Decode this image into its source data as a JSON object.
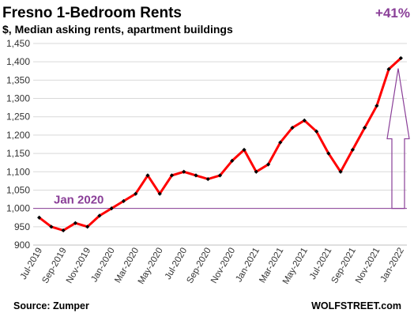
{
  "chart_data": {
    "type": "line",
    "title": "Fresno 1-Bedroom Rents",
    "subtitle": "$, Median asking rents, apartment buildings",
    "categories": [
      "Jul-2019",
      "Aug-2019",
      "Sep-2019",
      "Oct-2019",
      "Nov-2019",
      "Dec-2019",
      "Jan-2020",
      "Feb-2020",
      "Mar-2020",
      "Apr-2020",
      "May-2020",
      "Jun-2020",
      "Jul-2020",
      "Aug-2020",
      "Sep-2020",
      "Oct-2020",
      "Nov-2020",
      "Dec-2020",
      "Jan-2021",
      "Feb-2021",
      "Mar-2021",
      "Apr-2021",
      "May-2021",
      "Jun-2021",
      "Jul-2021",
      "Aug-2021",
      "Sep-2021",
      "Oct-2021",
      "Nov-2021",
      "Dec-2021",
      "Jan-2022"
    ],
    "x_tick_labels": [
      "Jul-2019",
      "Sep-2019",
      "Nov-2019",
      "Jan-2020",
      "Mar-2020",
      "May-2020",
      "Jul-2020",
      "Sep-2020",
      "Nov-2020",
      "Jan-2021",
      "Mar-2021",
      "May-2021",
      "Jul-2021",
      "Sep-2021",
      "Nov-2021",
      "Jan-2022"
    ],
    "series": [
      {
        "values": [
          975,
          950,
          940,
          960,
          950,
          980,
          1000,
          1020,
          1040,
          1090,
          1040,
          1090,
          1100,
          1090,
          1080,
          1090,
          1130,
          1160,
          1100,
          1120,
          1180,
          1220,
          1240,
          1210,
          1150,
          1100,
          1160,
          1220,
          1280,
          1380,
          1410
        ],
        "color": "#ff0000"
      }
    ],
    "ylim": [
      900,
      1450
    ],
    "yticks": [
      "900",
      "950",
      "1,000",
      "1,050",
      "1,100",
      "1,150",
      "1,200",
      "1,250",
      "1,300",
      "1,350",
      "1,400",
      "1,450"
    ],
    "reference_line": {
      "value": 1000,
      "label": "Jan 2020",
      "color": "#8a3f98"
    },
    "annotation": {
      "label": "+41%",
      "color": "#8a3f98"
    },
    "grid": "horizontal",
    "xlabel": "",
    "ylabel": ""
  },
  "footer": {
    "source": "Source: Zumper",
    "brand": "WOLFSTREET.com"
  }
}
